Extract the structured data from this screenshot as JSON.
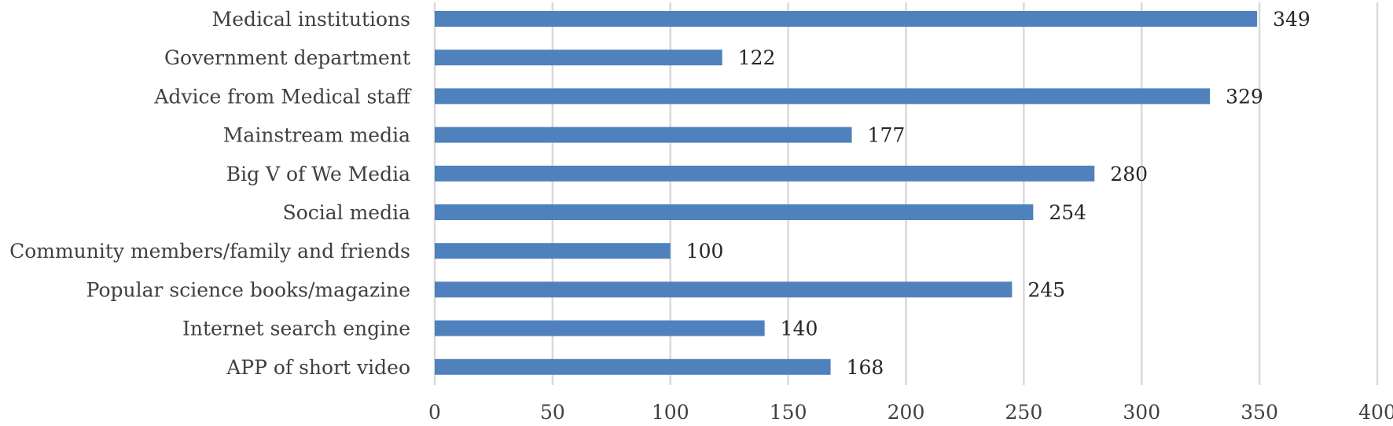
{
  "chart_data": {
    "type": "bar",
    "orientation": "horizontal",
    "categories": [
      "Medical institutions",
      "Government department",
      "Advice from Medical staff",
      "Mainstream media",
      "Big V of We Media",
      "Social media",
      "Community members/family and friends",
      "Popular science books/magazine",
      "Internet search engine",
      "APP of short video"
    ],
    "values": [
      349,
      122,
      329,
      177,
      280,
      254,
      100,
      245,
      140,
      168
    ],
    "value_labels": [
      "349",
      "122",
      "329",
      "177",
      "280",
      "254",
      "100",
      "245",
      "140",
      "168"
    ],
    "xlim": [
      0,
      400
    ],
    "xticks": [
      0,
      50,
      100,
      150,
      200,
      250,
      300,
      350,
      400
    ],
    "xtick_labels": [
      "0",
      "50",
      "100",
      "150",
      "200",
      "250",
      "300",
      "350",
      "400"
    ],
    "title": "",
    "xlabel": "",
    "ylabel": "",
    "grid": "vertical",
    "legend": "none",
    "colors": {
      "bar": "#4f81bd",
      "grid": "#d9d9d9",
      "text": "#404040"
    }
  }
}
